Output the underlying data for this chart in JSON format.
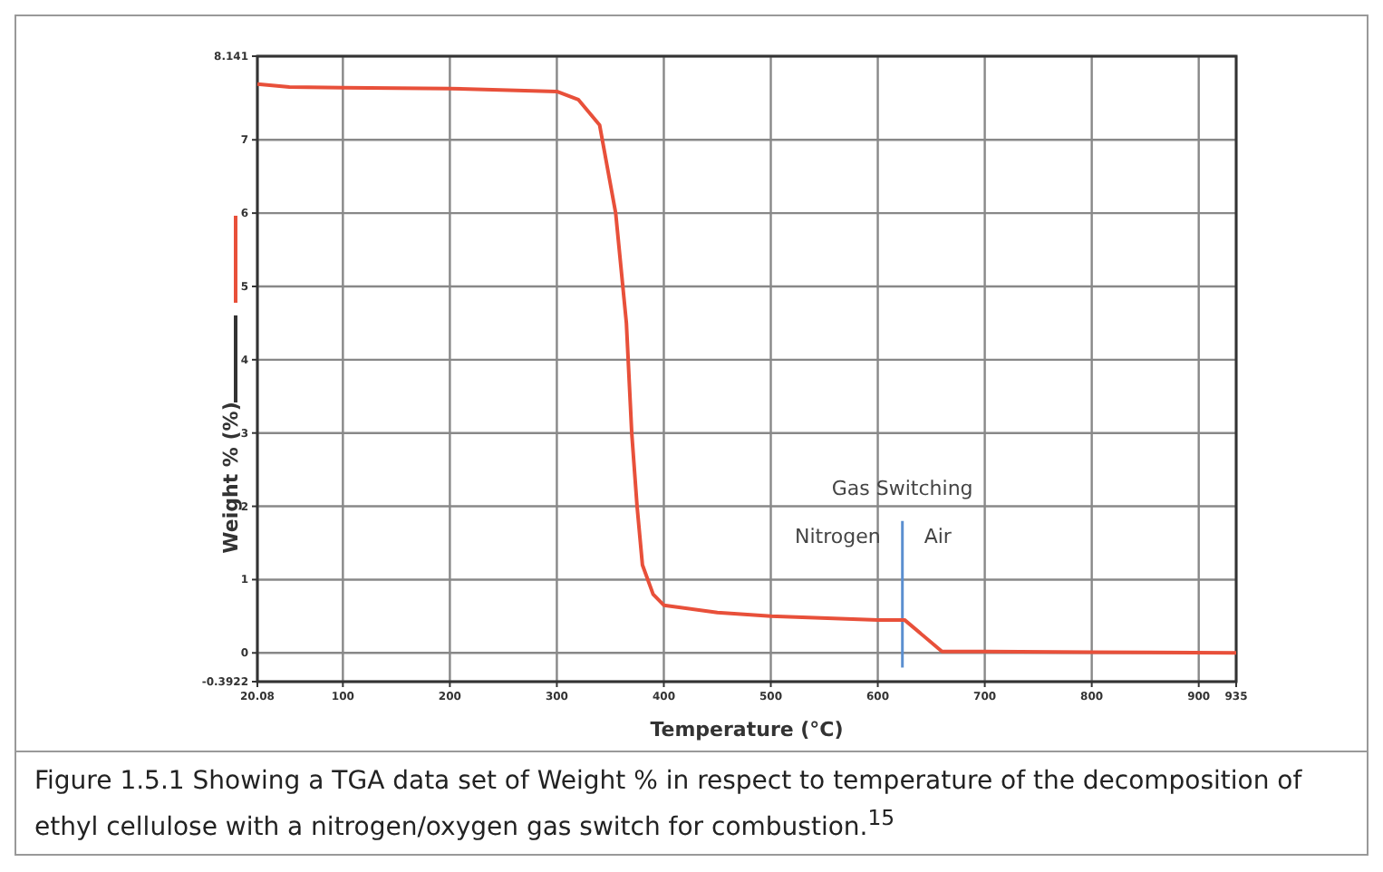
{
  "chart_data": {
    "type": "line",
    "xlabel": "Temperature (°C)",
    "ylabel": "Weight % (%)",
    "x": [
      20.08,
      50,
      100,
      200,
      300,
      320,
      340,
      355,
      365,
      370,
      375,
      380,
      390,
      400,
      450,
      500,
      600,
      625,
      660,
      700,
      800,
      935
    ],
    "series": [
      {
        "color": "#e8503a",
        "values": [
          7.76,
          7.72,
          7.71,
          7.7,
          7.66,
          7.55,
          7.2,
          6.0,
          4.5,
          3.0,
          2.0,
          1.2,
          0.8,
          0.65,
          0.55,
          0.5,
          0.45,
          0.45,
          0.02,
          0.02,
          0.01,
          0.0
        ]
      }
    ],
    "xlim": [
      20.08,
      935
    ],
    "xticks": [
      20.08,
      100,
      200,
      300,
      400,
      500,
      600,
      700,
      800,
      900,
      935
    ],
    "ylim": [
      -0.3922,
      8.141
    ],
    "yticks": [
      -0.3922,
      0,
      1,
      2,
      3,
      4,
      5,
      6,
      7,
      8.141
    ],
    "grid": true,
    "line_style": "solid",
    "ref_lines": [
      {
        "axis": "x",
        "value": 623,
        "color": "#5b8fd0"
      }
    ],
    "annotations": [
      "Gas Switching",
      "Nitrogen",
      "Air",
      "Figure 1.5.1 Showing a TGA data set of Weight % in respect to temperature of the decomposition of ethyl cellulose with a nitrogen/oxygen gas switch for combustion.$^{15}$"
    ]
  }
}
